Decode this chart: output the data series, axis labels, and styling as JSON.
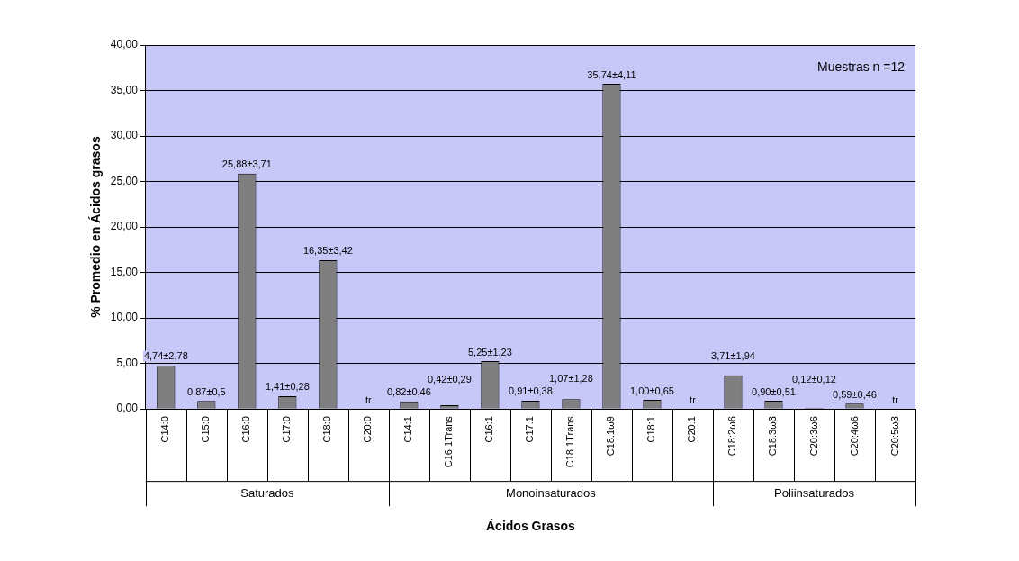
{
  "chart_data": {
    "type": "bar",
    "xlabel": "Ácidos Grasos",
    "ylabel": "% Promedio en Ácidos grasos",
    "categories": [
      "C14:0",
      "C15:0",
      "C16:0",
      "C17:0",
      "C18:0",
      "C20:0",
      "C14:1",
      "C16:1Trans",
      "C16:1",
      "C17:1",
      "C18:1Trans",
      "C18:1ω9",
      "C18:1",
      "C20:1",
      "C18:2ω6",
      "C18:3ω3",
      "C20:3ω6",
      "C20:4ω6",
      "C20:5ω3"
    ],
    "values": [
      4.74,
      0.87,
      25.88,
      1.41,
      16.35,
      0,
      0.82,
      0.42,
      5.25,
      0.91,
      1.07,
      35.74,
      1.0,
      0,
      3.71,
      0.9,
      0.12,
      0.59,
      0
    ],
    "value_labels": [
      "4,74±2,78",
      "0,87±0,5",
      "25,88±3,71",
      "1,41±0,28",
      "16,35±3,42",
      "tr",
      "0,82±0,46",
      "0,42±0,29",
      "5,25±1,23",
      "0,91±0,38",
      "1,07±1,28",
      "35,74±4,11",
      "1,00±0,65",
      "tr",
      "3,71±1,94",
      "0,90±0,51",
      "0,12±0,12",
      "0,59±0,46",
      "tr"
    ],
    "color": "#7f7f7f",
    "ylim": [
      0,
      40
    ],
    "yticks": [
      {
        "value": 0,
        "label": "0,00"
      },
      {
        "value": 5,
        "label": "5,00"
      },
      {
        "value": 10,
        "label": "10,00"
      },
      {
        "value": 15,
        "label": "15,00"
      },
      {
        "value": 20,
        "label": "20,00"
      },
      {
        "value": 25,
        "label": "25,00"
      },
      {
        "value": 30,
        "label": "30,00"
      },
      {
        "value": 35,
        "label": "35,00"
      },
      {
        "value": 40,
        "label": "40,00"
      }
    ],
    "grid": "y",
    "legend": false,
    "annotations": [
      "Saturados",
      "Monoinsaturados",
      "Poliinsaturados",
      "Muestras n =12"
    ]
  }
}
